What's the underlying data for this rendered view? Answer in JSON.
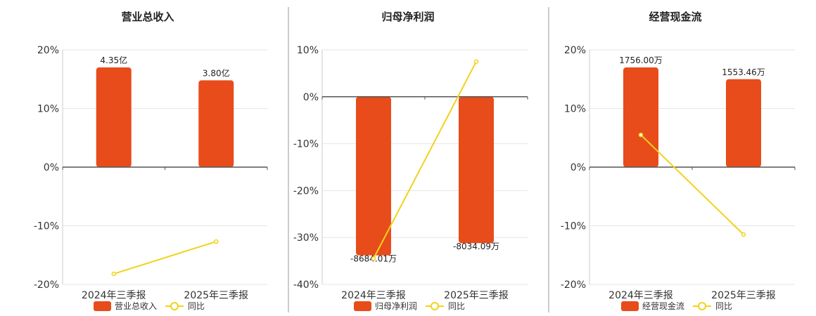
{
  "chart_data": [
    {
      "type": "bar",
      "title": "营业总收入",
      "categories": [
        "2024年三季报",
        "2025年三季报"
      ],
      "series": [
        {
          "name": "营业总收入",
          "kind": "bar",
          "values": [
            17.0,
            14.8
          ],
          "labels": [
            "4.35亿",
            "3.80亿"
          ]
        },
        {
          "name": "同比",
          "kind": "line",
          "values": [
            -18.2,
            -12.7
          ]
        }
      ],
      "ylim": [
        -20,
        20
      ],
      "yticks": [
        "20%",
        "10%",
        "0%",
        "-10%",
        "-20%"
      ],
      "colors": {
        "bar": "#E84C1B",
        "line": "#F2D21B"
      }
    },
    {
      "type": "bar",
      "title": "归母净利润",
      "categories": [
        "2024年三季报",
        "2025年三季报"
      ],
      "series": [
        {
          "name": "归母净利润",
          "kind": "bar",
          "values": [
            -33.8,
            -31.2
          ],
          "labels": [
            "-8684.01万",
            "-8034.09万"
          ]
        },
        {
          "name": "同比",
          "kind": "line",
          "values": [
            -34.5,
            7.5
          ]
        }
      ],
      "ylim": [
        -40,
        10
      ],
      "yticks": [
        "10%",
        "0%",
        "-10%",
        "-20%",
        "-30%",
        "-40%"
      ],
      "colors": {
        "bar": "#E84C1B",
        "line": "#F2D21B"
      }
    },
    {
      "type": "bar",
      "title": "经营现金流",
      "categories": [
        "2024年三季报",
        "2025年三季报"
      ],
      "series": [
        {
          "name": "经营现金流",
          "kind": "bar",
          "values": [
            17.0,
            15.0
          ],
          "labels": [
            "1756.00万",
            "1553.46万"
          ]
        },
        {
          "name": "同比",
          "kind": "line",
          "values": [
            5.5,
            -11.5
          ]
        }
      ],
      "ylim": [
        -20,
        20
      ],
      "yticks": [
        "20%",
        "10%",
        "0%",
        "-10%",
        "-20%"
      ],
      "colors": {
        "bar": "#E84C1B",
        "line": "#F2D21B"
      }
    }
  ]
}
